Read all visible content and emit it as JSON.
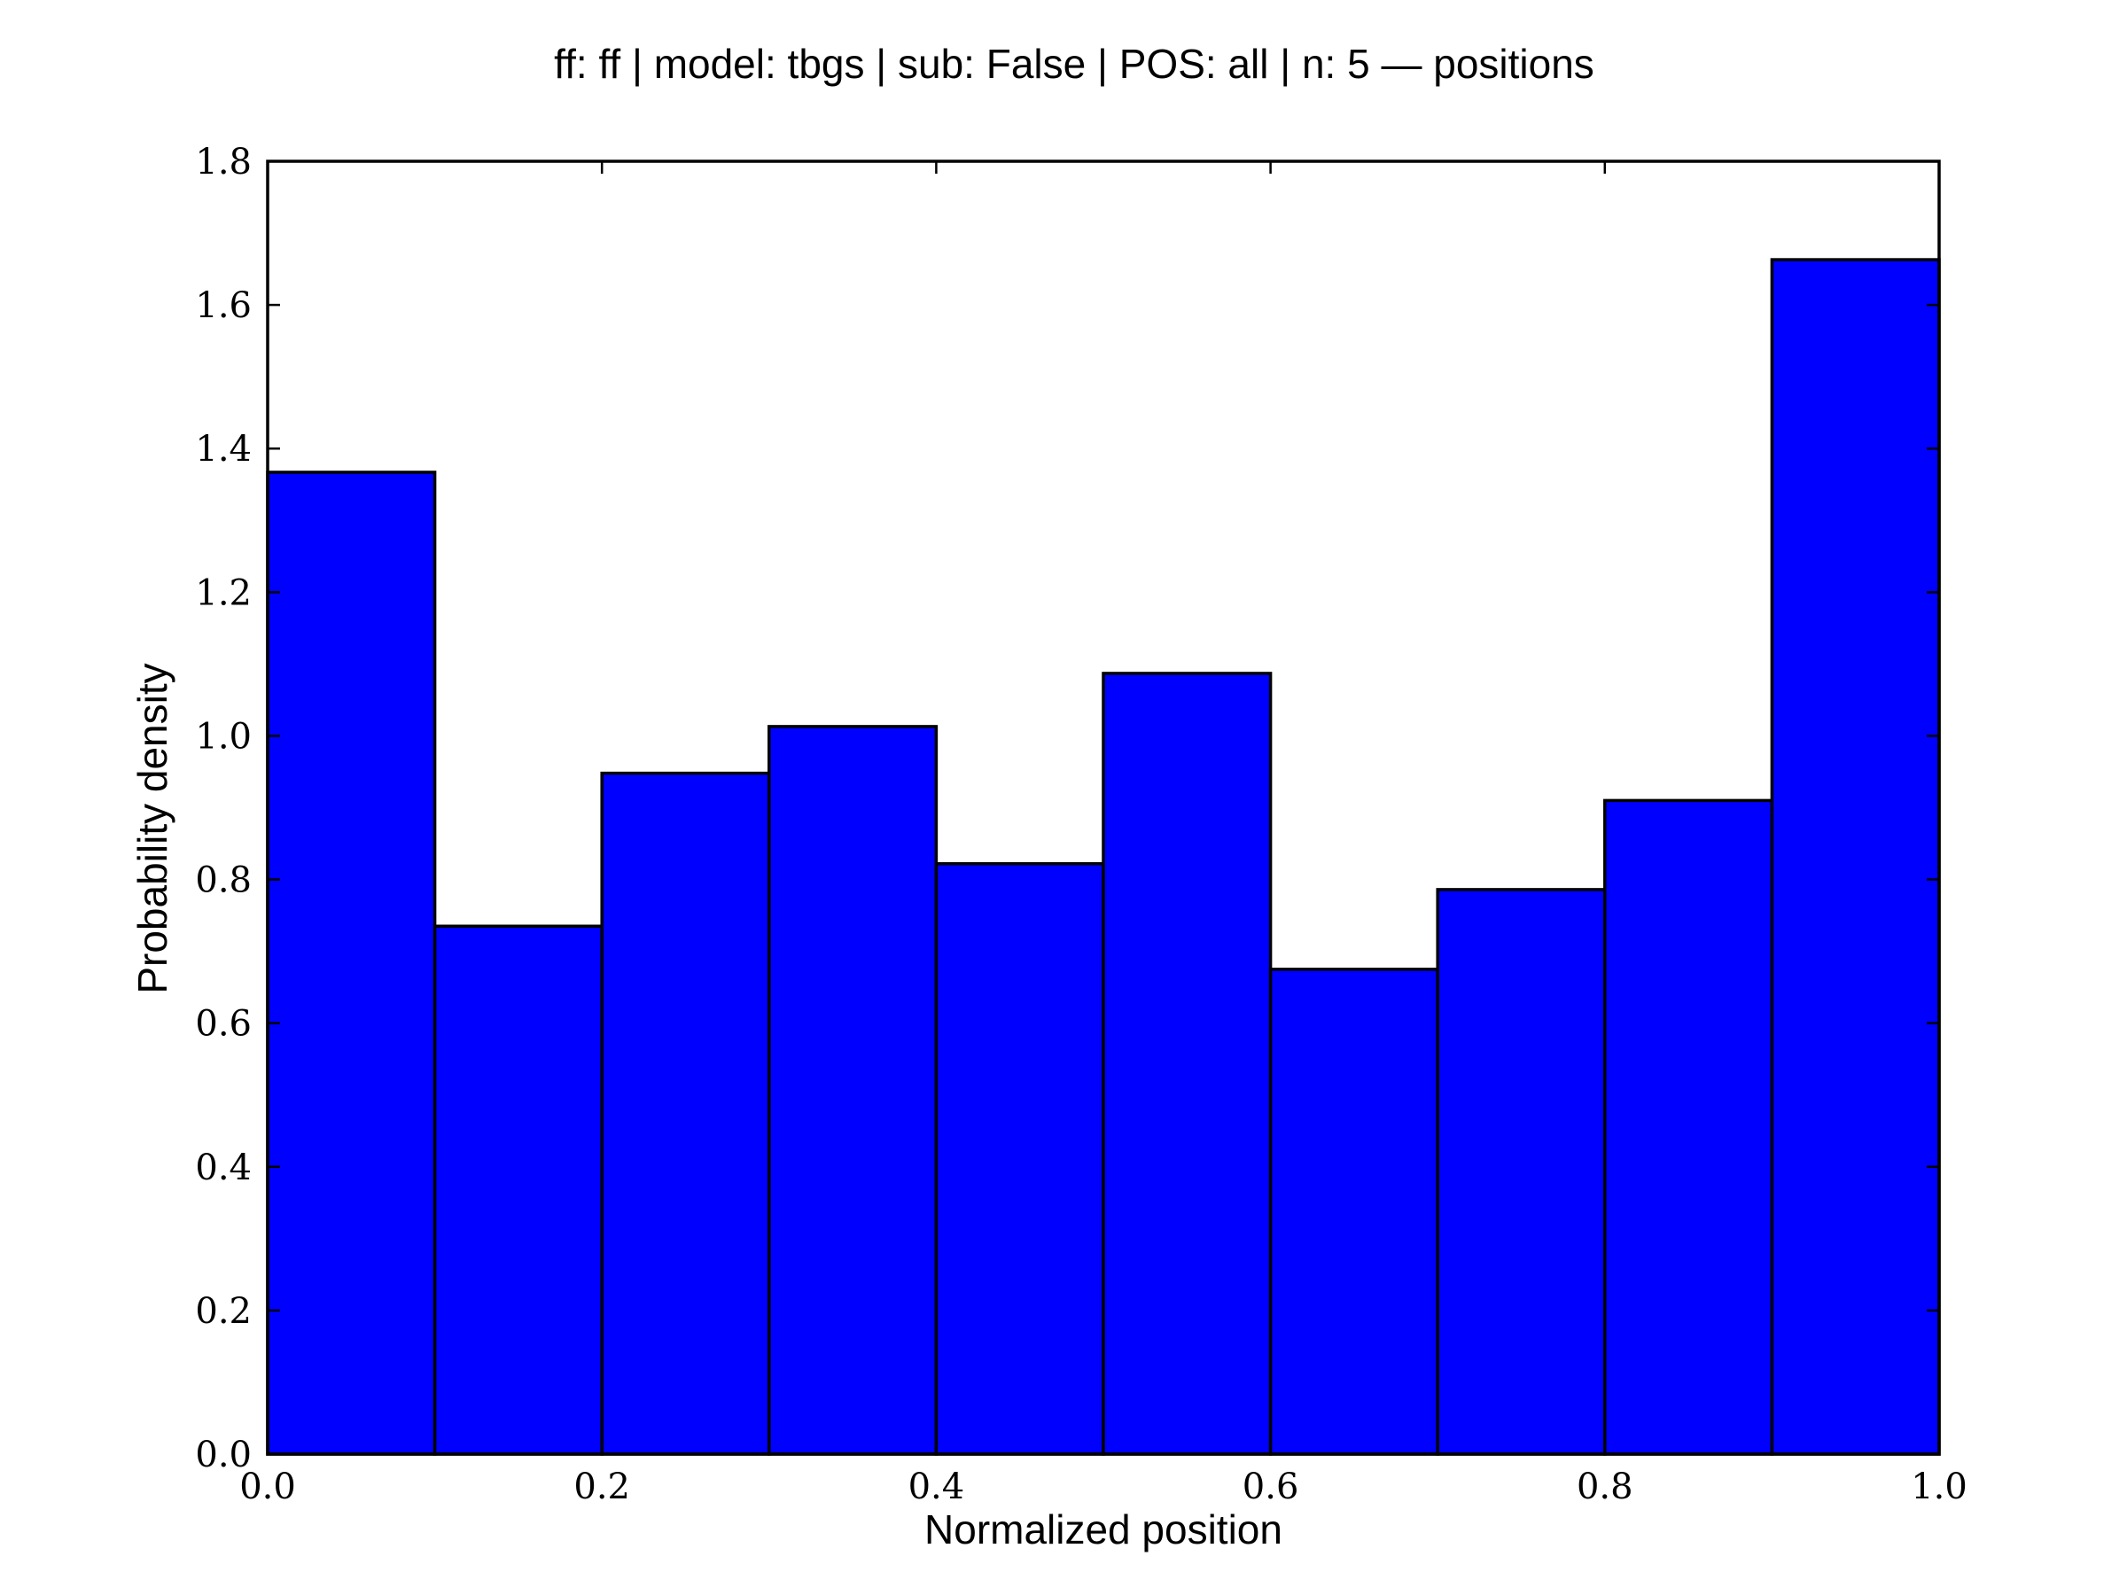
{
  "chart_data": {
    "type": "bar",
    "title": "ff: ff | model: tbgs | sub: False | POS: all | n: 5 — positions",
    "xlabel": "Normalized position",
    "ylabel": "Probability density",
    "bin_edges": [
      0.0,
      0.1,
      0.2,
      0.3,
      0.4,
      0.5,
      0.6,
      0.7,
      0.8,
      0.9,
      1.0
    ],
    "values": [
      1.367,
      0.735,
      0.948,
      1.013,
      0.822,
      1.087,
      0.675,
      0.786,
      0.91,
      1.663
    ],
    "xlim": [
      0.0,
      1.0
    ],
    "ylim": [
      0.0,
      1.8
    ],
    "xticks": [
      "0.0",
      "0.2",
      "0.4",
      "0.6",
      "0.8",
      "1.0"
    ],
    "yticks": [
      "0.0",
      "0.2",
      "0.4",
      "0.6",
      "0.8",
      "1.0",
      "1.2",
      "1.4",
      "1.6",
      "1.8"
    ],
    "bar_color": "#0000ff",
    "grid": false
  }
}
